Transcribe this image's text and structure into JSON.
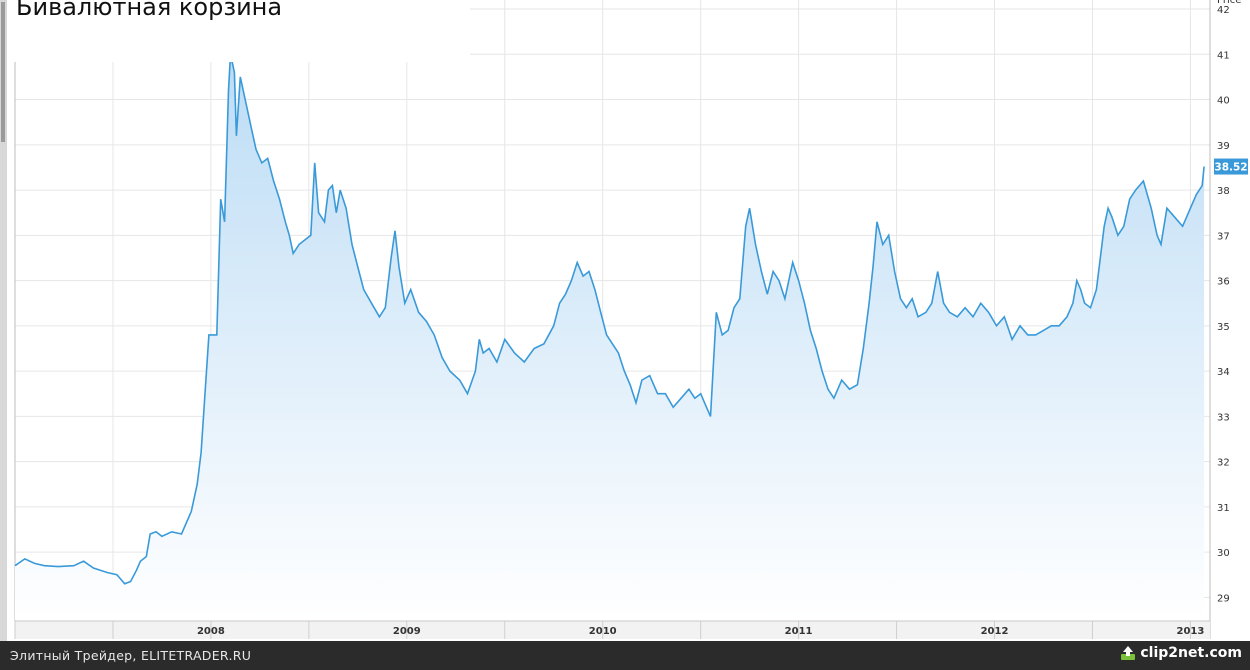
{
  "chart_data": {
    "type": "area",
    "title": "Бивалютная корзина",
    "y_axis_title": "Price",
    "xlabel": "",
    "ylabel": "",
    "x_tick_labels": [
      "2008",
      "2009",
      "2010",
      "2011",
      "2012",
      "2013"
    ],
    "y_ticks": [
      29,
      30,
      31,
      32,
      33,
      34,
      35,
      36,
      37,
      38,
      39,
      40,
      41,
      42
    ],
    "ylim": [
      28.5,
      42.2
    ],
    "xlim": [
      2007.5,
      2013.6
    ],
    "grid": true,
    "last_value": "38.52",
    "colors": {
      "line": "#3a9ad9",
      "fill_top": "#bcdcf5",
      "fill_bottom": "#ffffff",
      "badge": "#3a9ad9",
      "grid": "#e6e6e6"
    },
    "series": [
      {
        "values": [
          [
            2007.5,
            29.7
          ],
          [
            2007.55,
            29.85
          ],
          [
            2007.6,
            29.75
          ],
          [
            2007.65,
            29.7
          ],
          [
            2007.72,
            29.68
          ],
          [
            2007.8,
            29.7
          ],
          [
            2007.85,
            29.8
          ],
          [
            2007.9,
            29.65
          ],
          [
            2007.97,
            29.55
          ],
          [
            2008.02,
            29.5
          ],
          [
            2008.06,
            29.3
          ],
          [
            2008.09,
            29.35
          ],
          [
            2008.12,
            29.6
          ],
          [
            2008.14,
            29.8
          ],
          [
            2008.17,
            29.9
          ],
          [
            2008.19,
            30.4
          ],
          [
            2008.22,
            30.45
          ],
          [
            2008.25,
            30.35
          ],
          [
            2008.3,
            30.45
          ],
          [
            2008.35,
            30.4
          ],
          [
            2008.37,
            30.6
          ],
          [
            2008.4,
            30.9
          ],
          [
            2008.43,
            31.5
          ],
          [
            2008.45,
            32.2
          ],
          [
            2008.47,
            33.5
          ],
          [
            2008.49,
            34.8
          ],
          [
            2008.53,
            34.8
          ],
          [
            2008.55,
            37.8
          ],
          [
            2008.57,
            37.3
          ],
          [
            2008.59,
            40.2
          ],
          [
            2008.6,
            41.0
          ],
          [
            2008.62,
            40.6
          ],
          [
            2008.63,
            39.2
          ],
          [
            2008.65,
            40.5
          ],
          [
            2008.67,
            40.1
          ],
          [
            2008.69,
            39.7
          ],
          [
            2008.71,
            39.3
          ],
          [
            2008.73,
            38.9
          ],
          [
            2008.76,
            38.6
          ],
          [
            2008.79,
            38.7
          ],
          [
            2008.82,
            38.2
          ],
          [
            2008.85,
            37.8
          ],
          [
            2008.88,
            37.3
          ],
          [
            2008.9,
            37.0
          ],
          [
            2008.92,
            36.6
          ],
          [
            2008.95,
            36.8
          ],
          [
            2008.98,
            36.9
          ],
          [
            2009.01,
            37.0
          ],
          [
            2009.03,
            38.6
          ],
          [
            2009.05,
            37.5
          ],
          [
            2009.08,
            37.3
          ],
          [
            2009.1,
            38.0
          ],
          [
            2009.12,
            38.1
          ],
          [
            2009.14,
            37.5
          ],
          [
            2009.16,
            38.0
          ],
          [
            2009.19,
            37.6
          ],
          [
            2009.22,
            36.8
          ],
          [
            2009.25,
            36.3
          ],
          [
            2009.28,
            35.8
          ],
          [
            2009.32,
            35.5
          ],
          [
            2009.36,
            35.2
          ],
          [
            2009.39,
            35.4
          ],
          [
            2009.42,
            36.5
          ],
          [
            2009.44,
            37.1
          ],
          [
            2009.46,
            36.3
          ],
          [
            2009.49,
            35.5
          ],
          [
            2009.52,
            35.8
          ],
          [
            2009.56,
            35.3
          ],
          [
            2009.6,
            35.1
          ],
          [
            2009.64,
            34.8
          ],
          [
            2009.68,
            34.3
          ],
          [
            2009.72,
            34.0
          ],
          [
            2009.77,
            33.8
          ],
          [
            2009.81,
            33.5
          ],
          [
            2009.85,
            34.0
          ],
          [
            2009.87,
            34.7
          ],
          [
            2009.89,
            34.4
          ],
          [
            2009.92,
            34.5
          ],
          [
            2009.96,
            34.2
          ],
          [
            2010.0,
            34.7
          ],
          [
            2010.05,
            34.4
          ],
          [
            2010.1,
            34.2
          ],
          [
            2010.15,
            34.5
          ],
          [
            2010.2,
            34.6
          ],
          [
            2010.25,
            35.0
          ],
          [
            2010.28,
            35.5
          ],
          [
            2010.31,
            35.7
          ],
          [
            2010.34,
            36.0
          ],
          [
            2010.37,
            36.4
          ],
          [
            2010.4,
            36.1
          ],
          [
            2010.43,
            36.2
          ],
          [
            2010.46,
            35.8
          ],
          [
            2010.49,
            35.3
          ],
          [
            2010.52,
            34.8
          ],
          [
            2010.55,
            34.6
          ],
          [
            2010.58,
            34.4
          ],
          [
            2010.61,
            34.0
          ],
          [
            2010.64,
            33.7
          ],
          [
            2010.67,
            33.3
          ],
          [
            2010.7,
            33.8
          ],
          [
            2010.74,
            33.9
          ],
          [
            2010.78,
            33.5
          ],
          [
            2010.82,
            33.5
          ],
          [
            2010.86,
            33.2
          ],
          [
            2010.9,
            33.4
          ],
          [
            2010.94,
            33.6
          ],
          [
            2010.97,
            33.4
          ],
          [
            2011.0,
            33.5
          ],
          [
            2011.03,
            33.2
          ],
          [
            2011.05,
            33.0
          ],
          [
            2011.08,
            35.3
          ],
          [
            2011.11,
            34.8
          ],
          [
            2011.14,
            34.9
          ],
          [
            2011.17,
            35.4
          ],
          [
            2011.2,
            35.6
          ],
          [
            2011.23,
            37.2
          ],
          [
            2011.25,
            37.6
          ],
          [
            2011.28,
            36.8
          ],
          [
            2011.31,
            36.2
          ],
          [
            2011.34,
            35.7
          ],
          [
            2011.37,
            36.2
          ],
          [
            2011.4,
            36.0
          ],
          [
            2011.43,
            35.6
          ],
          [
            2011.47,
            36.4
          ],
          [
            2011.5,
            36.0
          ],
          [
            2011.53,
            35.5
          ],
          [
            2011.56,
            34.9
          ],
          [
            2011.59,
            34.5
          ],
          [
            2011.62,
            34.0
          ],
          [
            2011.65,
            33.6
          ],
          [
            2011.68,
            33.4
          ],
          [
            2011.72,
            33.8
          ],
          [
            2011.76,
            33.6
          ],
          [
            2011.8,
            33.7
          ],
          [
            2011.83,
            34.5
          ],
          [
            2011.86,
            35.5
          ],
          [
            2011.88,
            36.3
          ],
          [
            2011.9,
            37.3
          ],
          [
            2011.93,
            36.8
          ],
          [
            2011.96,
            37.0
          ],
          [
            2011.99,
            36.2
          ],
          [
            2012.02,
            35.6
          ],
          [
            2012.05,
            35.4
          ],
          [
            2012.08,
            35.6
          ],
          [
            2012.11,
            35.2
          ],
          [
            2012.15,
            35.3
          ],
          [
            2012.18,
            35.5
          ],
          [
            2012.21,
            36.2
          ],
          [
            2012.24,
            35.5
          ],
          [
            2012.27,
            35.3
          ],
          [
            2012.31,
            35.2
          ],
          [
            2012.35,
            35.4
          ],
          [
            2012.39,
            35.2
          ],
          [
            2012.43,
            35.5
          ],
          [
            2012.47,
            35.3
          ],
          [
            2012.51,
            35.0
          ],
          [
            2012.55,
            35.2
          ],
          [
            2012.59,
            34.7
          ],
          [
            2012.63,
            35.0
          ],
          [
            2012.67,
            34.8
          ],
          [
            2012.71,
            34.8
          ],
          [
            2012.75,
            34.9
          ],
          [
            2012.79,
            35.0
          ],
          [
            2012.83,
            35.0
          ],
          [
            2012.87,
            35.2
          ],
          [
            2012.9,
            35.5
          ],
          [
            2012.92,
            36.0
          ],
          [
            2012.94,
            35.8
          ],
          [
            2012.96,
            35.5
          ],
          [
            2012.99,
            35.4
          ],
          [
            2013.02,
            35.8
          ],
          [
            2013.04,
            36.5
          ],
          [
            2013.06,
            37.2
          ],
          [
            2013.08,
            37.6
          ],
          [
            2013.1,
            37.4
          ],
          [
            2013.13,
            37.0
          ],
          [
            2013.16,
            37.2
          ],
          [
            2013.19,
            37.8
          ],
          [
            2013.22,
            38.0
          ],
          [
            2013.26,
            38.2
          ],
          [
            2013.3,
            37.6
          ],
          [
            2013.33,
            37.0
          ],
          [
            2013.35,
            36.8
          ],
          [
            2013.38,
            37.6
          ],
          [
            2013.42,
            37.4
          ],
          [
            2013.46,
            37.2
          ],
          [
            2013.5,
            37.6
          ],
          [
            2013.53,
            37.9
          ],
          [
            2013.56,
            38.1
          ],
          [
            2013.57,
            38.52
          ]
        ]
      }
    ]
  },
  "footer": {
    "credit": "Элитный Трейдер, ELITETRADER.RU",
    "logo_text": "clip2net.com"
  }
}
